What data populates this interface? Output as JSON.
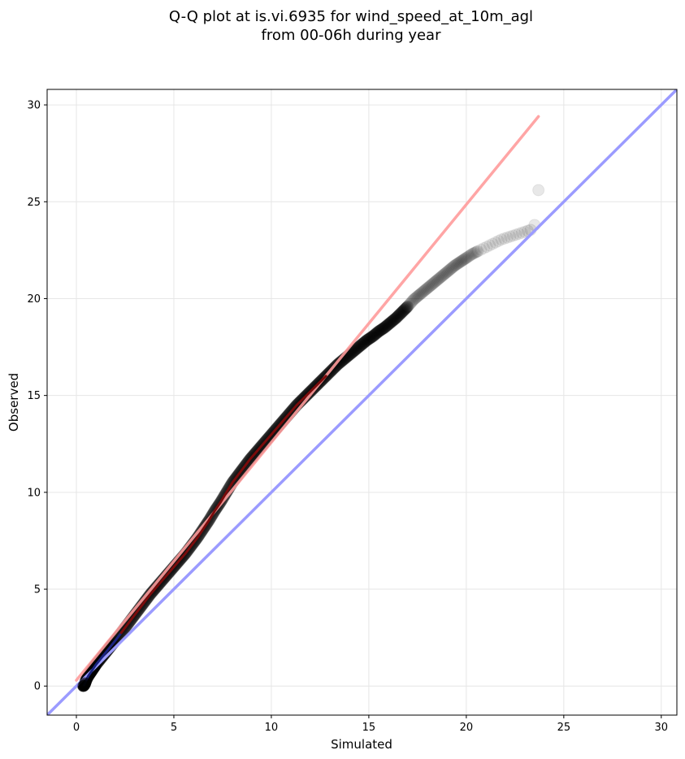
{
  "chart_data": {
    "type": "scatter",
    "title_lines": [
      "Q-Q plot at is.vi.6935 for wind_speed_at_10m_agl",
      "from 00-06h during year"
    ],
    "xlabel": "Simulated",
    "ylabel": "Observed",
    "xlim": [
      -1.5,
      30.8
    ],
    "ylim": [
      -1.5,
      30.8
    ],
    "xticks": [
      0,
      5,
      10,
      15,
      20,
      25,
      30
    ],
    "yticks": [
      0,
      5,
      10,
      15,
      20,
      25,
      30
    ],
    "grid": true,
    "quantiles": {
      "x": [
        0.35,
        0.4,
        0.45,
        0.5,
        0.6,
        0.7,
        0.8,
        0.9,
        1.0,
        1.2,
        1.4,
        1.6,
        1.8,
        2.0,
        2.3,
        2.6,
        2.9,
        3.2,
        3.5,
        3.8,
        4.1,
        4.4,
        4.7,
        5.0,
        5.3,
        5.6,
        5.9,
        6.2,
        6.5,
        6.8,
        7.1,
        7.4,
        7.7,
        8.0,
        8.3,
        8.6,
        8.9,
        9.2,
        9.5,
        9.8,
        10.1,
        10.4,
        10.7,
        11.0,
        11.3,
        11.6,
        11.9,
        12.2,
        12.5,
        12.8,
        13.1,
        13.4,
        13.7,
        14.0,
        14.3,
        14.6,
        14.9,
        15.2,
        15.5,
        15.8,
        16.1,
        16.4,
        16.7,
        17.0,
        17.3,
        17.6,
        17.9,
        18.2,
        18.5,
        18.8,
        19.1,
        19.4,
        19.7,
        20.0,
        20.3,
        20.6,
        20.9,
        21.2,
        21.5,
        21.8,
        22.1,
        22.4,
        22.7,
        23.0,
        23.3,
        23.5,
        23.7
      ],
      "y": [
        0.0,
        0.05,
        0.15,
        0.3,
        0.5,
        0.65,
        0.8,
        0.95,
        1.1,
        1.35,
        1.6,
        1.85,
        2.1,
        2.35,
        2.75,
        3.15,
        3.55,
        3.95,
        4.35,
        4.75,
        5.1,
        5.45,
        5.8,
        6.15,
        6.5,
        6.85,
        7.25,
        7.65,
        8.1,
        8.55,
        9.05,
        9.5,
        10.0,
        10.5,
        10.9,
        11.3,
        11.7,
        12.05,
        12.4,
        12.75,
        13.1,
        13.45,
        13.8,
        14.15,
        14.5,
        14.8,
        15.1,
        15.4,
        15.7,
        16.0,
        16.3,
        16.6,
        16.85,
        17.1,
        17.35,
        17.6,
        17.85,
        18.05,
        18.3,
        18.5,
        18.75,
        19.0,
        19.3,
        19.6,
        19.95,
        20.2,
        20.45,
        20.7,
        20.95,
        21.2,
        21.45,
        21.7,
        21.9,
        22.1,
        22.3,
        22.45,
        22.6,
        22.75,
        22.9,
        23.05,
        23.15,
        23.25,
        23.35,
        23.45,
        23.55,
        23.8,
        25.6
      ]
    },
    "fit_line": {
      "x": [
        0.0,
        23.7
      ],
      "y": [
        0.3,
        29.4
      ],
      "color": "#ff9b9b"
    },
    "reference_line": {
      "x": [
        -1.5,
        30.8
      ],
      "y": [
        -1.5,
        30.8
      ],
      "color": "#9b9bff"
    },
    "marker_color": "#000000",
    "low_segment_color": "#1a237e",
    "mid_segment_color": "#7a0b0b"
  }
}
